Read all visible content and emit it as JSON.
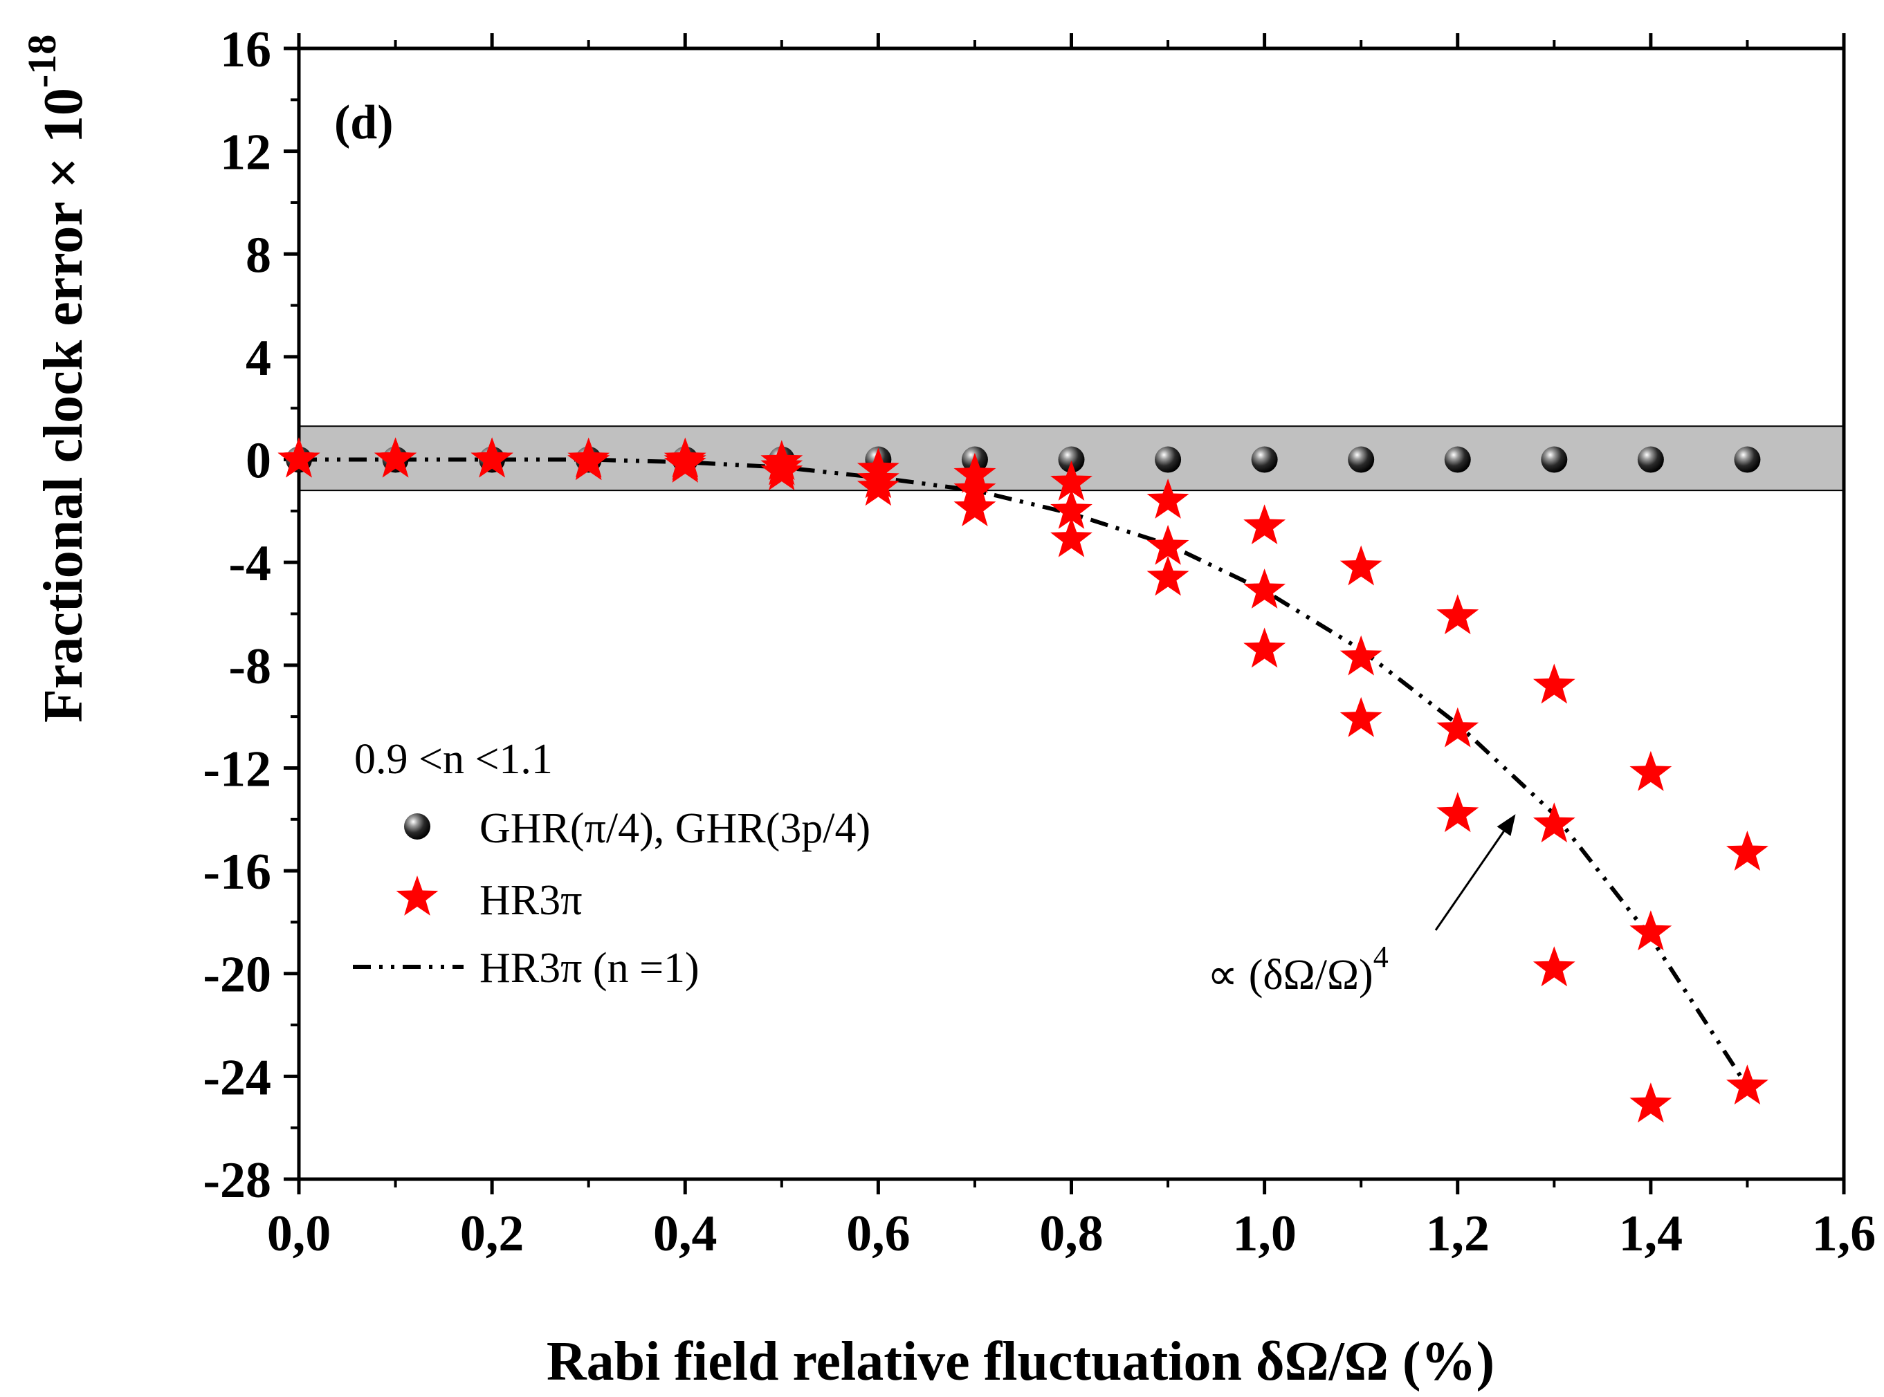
{
  "chart_data": {
    "type": "scatter",
    "panel_label": "(d)",
    "xlabel": "Rabi field relative fluctuation δΩ/Ω (%)",
    "ylabel": "Fractional clock error × 10",
    "ylabel_exponent": "-18",
    "xlim": [
      0,
      1.6
    ],
    "ylim": [
      -28,
      16
    ],
    "x_ticks": [
      0,
      0.2,
      0.4,
      0.6,
      0.8,
      1.0,
      1.2,
      1.4,
      1.6
    ],
    "x_tick_labels": [
      "0,0",
      "0,2",
      "0,4",
      "0,6",
      "0,8",
      "1,0",
      "1,2",
      "1,4",
      "1,6"
    ],
    "y_ticks": [
      16,
      12,
      8,
      4,
      0,
      -4,
      -8,
      -12,
      -16,
      -20,
      -24,
      -28
    ],
    "y_tick_labels": [
      "16",
      "12",
      "8",
      "4",
      "0",
      "-4",
      "-8",
      "-12",
      "-16",
      "-20",
      "-24",
      "-28"
    ],
    "shaded_band": {
      "y_range": [
        -1.2,
        1.3
      ],
      "color": "#c0c0c0"
    },
    "legend": {
      "header": "0.9 <n <1.1",
      "entries": [
        "GHR(π/4), GHR(3p/4)",
        "HR3π",
        "HR3π  (n =1)"
      ]
    },
    "annotation": {
      "text": "∝ (δΩ/Ω)",
      "superscript": "4",
      "arrow_to": [
        1.26,
        -13.8
      ]
    },
    "series": [
      {
        "name": "GHR(π/4), GHR(3p/4)",
        "marker": "sphere",
        "color": "#000000",
        "x": [
          0.0,
          0.1,
          0.2,
          0.3,
          0.4,
          0.5,
          0.6,
          0.7,
          0.8,
          0.9,
          1.0,
          1.1,
          1.2,
          1.3,
          1.4,
          1.5
        ],
        "y": [
          0,
          0,
          0,
          0,
          0,
          0,
          0,
          0,
          0,
          0,
          0,
          0,
          0,
          0,
          0,
          0
        ]
      },
      {
        "name": "HR3π",
        "marker": "star",
        "color": "#ff0000",
        "points": [
          [
            0.0,
            0.0
          ],
          [
            0.0,
            0.0
          ],
          [
            0.0,
            0.0
          ],
          [
            0.1,
            0.0
          ],
          [
            0.1,
            0.0
          ],
          [
            0.1,
            0.0
          ],
          [
            0.2,
            0.0
          ],
          [
            0.2,
            0.0
          ],
          [
            0.2,
            0.0
          ],
          [
            0.3,
            0.0
          ],
          [
            0.3,
            -0.1
          ],
          [
            0.3,
            -0.1
          ],
          [
            0.4,
            0.0
          ],
          [
            0.4,
            -0.1
          ],
          [
            0.4,
            -0.2
          ],
          [
            0.5,
            -0.1
          ],
          [
            0.5,
            -0.3
          ],
          [
            0.5,
            -0.5
          ],
          [
            0.6,
            -0.4
          ],
          [
            0.6,
            -0.8
          ],
          [
            0.6,
            -1.1
          ],
          [
            0.7,
            -0.6
          ],
          [
            0.7,
            -1.2
          ],
          [
            0.7,
            -1.9
          ],
          [
            0.8,
            -0.9
          ],
          [
            0.8,
            -2.0
          ],
          [
            0.8,
            -3.1
          ],
          [
            0.9,
            -1.6
          ],
          [
            0.9,
            -3.4
          ],
          [
            0.9,
            -4.6
          ],
          [
            1.0,
            -2.6
          ],
          [
            1.0,
            -5.1
          ],
          [
            1.0,
            -7.4
          ],
          [
            1.1,
            -4.2
          ],
          [
            1.1,
            -7.7
          ],
          [
            1.1,
            -10.1
          ],
          [
            1.2,
            -6.1
          ],
          [
            1.2,
            -10.5
          ],
          [
            1.2,
            -13.8
          ],
          [
            1.3,
            -8.8
          ],
          [
            1.3,
            -14.2
          ],
          [
            1.3,
            -19.8
          ],
          [
            1.4,
            -12.2
          ],
          [
            1.4,
            -18.4
          ],
          [
            1.4,
            -25.1
          ],
          [
            1.5,
            -15.3
          ],
          [
            1.5,
            -24.4
          ]
        ]
      },
      {
        "name": "HR3π  (n =1)",
        "marker": "none",
        "line_style": "dash-dot-dot",
        "color": "#000000",
        "x": [
          0.0,
          0.1,
          0.2,
          0.3,
          0.4,
          0.5,
          0.6,
          0.7,
          0.8,
          0.9,
          1.0,
          1.1,
          1.2,
          1.3,
          1.4,
          1.5
        ],
        "y": [
          0.0,
          0.0,
          0.0,
          0.0,
          -0.1,
          -0.3,
          -0.7,
          -1.2,
          -2.1,
          -3.3,
          -5.1,
          -7.4,
          -10.3,
          -13.8,
          -18.6,
          -24.4
        ]
      }
    ]
  }
}
